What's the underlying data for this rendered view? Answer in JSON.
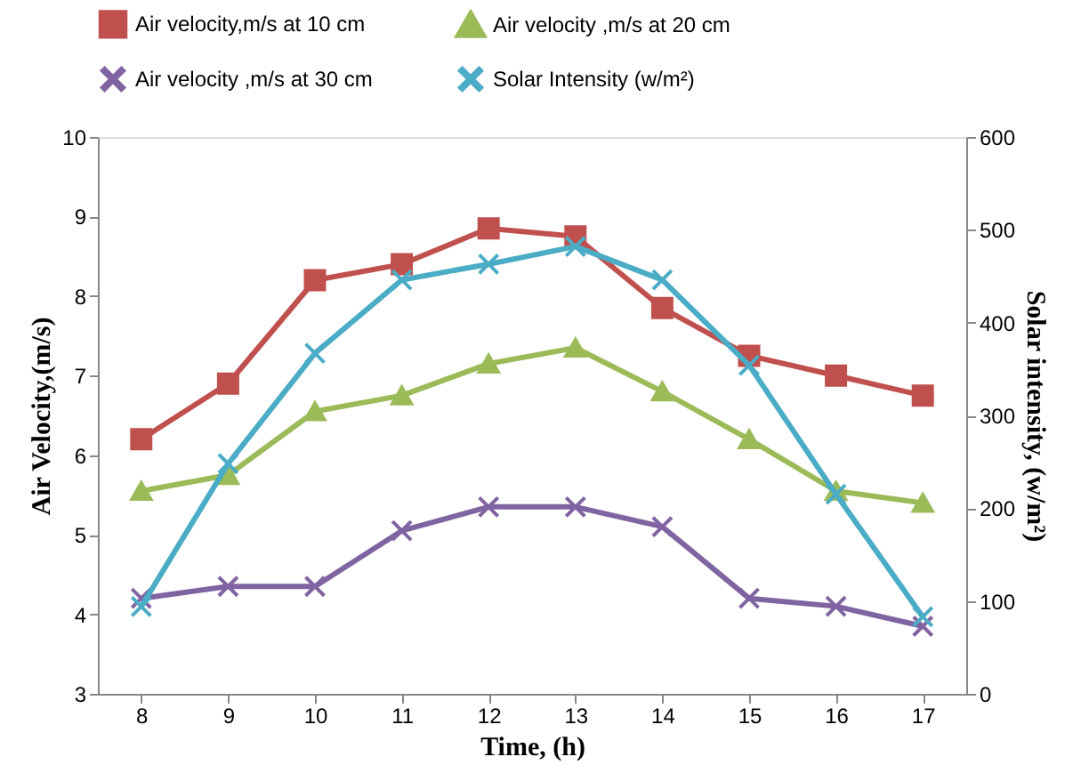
{
  "chart_data": {
    "type": "line",
    "xlabel": "Time, (h)",
    "ylabel": "Air   Velocity,(m/s)",
    "y2label": "Solar intensity,  (w/m²)",
    "categories": [
      "8",
      "9",
      "10",
      "11",
      "12",
      "13",
      "14",
      "15",
      "16",
      "17"
    ],
    "series": [
      {
        "name": "Air velocity,m/s at 10 cm",
        "color": "#c0504d",
        "marker": "square",
        "values": [
          6.2,
          6.9,
          8.2,
          8.4,
          8.85,
          8.75,
          7.85,
          7.25,
          7.0,
          6.75
        ]
      },
      {
        "name": "Air velocity ,m/s at 20 cm",
        "color": "#9bbb59",
        "marker": "triangle",
        "values": [
          5.55,
          5.75,
          6.55,
          6.75,
          7.15,
          7.35,
          6.8,
          6.2,
          5.55,
          5.4
        ]
      },
      {
        "name": "Air velocity ,m/s at 30 cm",
        "color": "#8064a2",
        "marker": "cross",
        "values": [
          4.2,
          4.35,
          4.35,
          5.05,
          5.35,
          5.35,
          5.1,
          4.2,
          4.1,
          3.85
        ]
      },
      {
        "name": "Solar Intensity (w/m²)",
        "color": "#4bacc6",
        "marker": "cross",
        "axis": "y2",
        "values": [
          94,
          248,
          367,
          446,
          463,
          482,
          446,
          354,
          215,
          83
        ]
      }
    ],
    "ylim": [
      3,
      10
    ],
    "yticks": [
      3,
      4,
      5,
      6,
      7,
      8,
      9,
      10
    ],
    "y2lim": [
      0,
      600
    ],
    "y2ticks": [
      0,
      100,
      200,
      300,
      400,
      500,
      600
    ],
    "grid": false,
    "legend": "top"
  }
}
